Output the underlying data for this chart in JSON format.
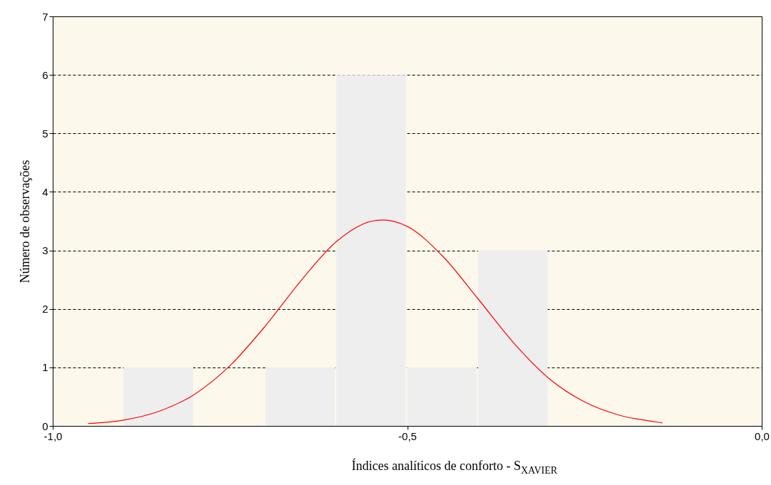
{
  "chart_data": {
    "type": "histogram",
    "xlabel": "Índices analíticos de conforto - S$_{XAVIER}$",
    "ylabel": "Número de observações",
    "bins": [
      -0.9,
      -0.8,
      -0.7,
      -0.6,
      -0.5,
      -0.4,
      -0.3
    ],
    "values": [
      1,
      0,
      1,
      6,
      1,
      3
    ],
    "color": "#eeeeee",
    "series": [
      {
        "type": "line",
        "color": "#ff0000",
        "x": [
          -0.95,
          -0.9,
          -0.85,
          -0.8,
          -0.75,
          -0.7,
          -0.65,
          -0.6,
          -0.55,
          -0.535,
          -0.5,
          -0.45,
          -0.4,
          -0.35,
          -0.3,
          -0.25,
          -0.2,
          -0.15,
          -0.14
        ],
        "values": [
          0.04,
          0.1,
          0.25,
          0.54,
          1.03,
          1.71,
          2.48,
          3.15,
          3.5,
          3.52,
          3.41,
          2.9,
          2.17,
          1.42,
          0.81,
          0.41,
          0.18,
          0.07,
          0.05
        ]
      }
    ],
    "xlim": [
      -1.0,
      0.0
    ],
    "xticks": [
      {
        "value": -1.0,
        "label": "-1,0"
      },
      {
        "value": -0.5,
        "label": "-0,5"
      },
      {
        "value": 0.0,
        "label": "0,0"
      }
    ],
    "ylim": [
      0,
      7
    ],
    "yticks": [
      0,
      1,
      2,
      3,
      4,
      5,
      6,
      7
    ],
    "grid": "y"
  }
}
